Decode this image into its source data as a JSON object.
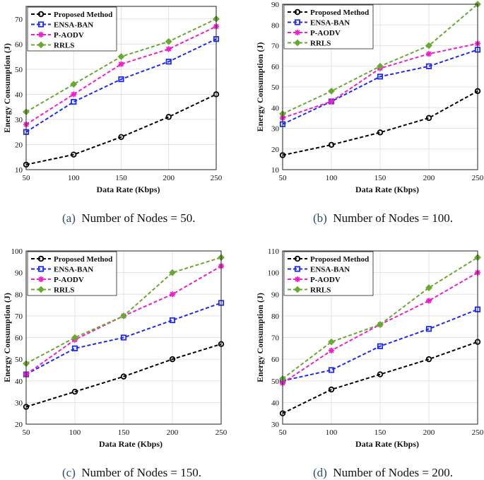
{
  "figure": {
    "captions": [
      {
        "label": "(a)",
        "text": "Number of Nodes = 50."
      },
      {
        "label": "(b)",
        "text": "Number of Nodes = 100."
      },
      {
        "label": "(c)",
        "text": "Number of Nodes = 150."
      },
      {
        "label": "(d)",
        "text": "Number of Nodes = 200."
      }
    ]
  },
  "colors": {
    "proposed": "#000000",
    "ensa": "#1f2bf0",
    "paodv": "#f020c8",
    "rrls": "#6aa832"
  },
  "chart_data": [
    {
      "type": "line",
      "title": "",
      "xlabel": "Data Rate (Kbps)",
      "ylabel": "Energy Consumption (J)",
      "x": [
        50,
        100,
        150,
        200,
        250
      ],
      "xlim": [
        50,
        250
      ],
      "ylim": [
        10,
        75
      ],
      "yticks": [
        10,
        20,
        30,
        40,
        50,
        60,
        70
      ],
      "grid": true,
      "legend_position": "top-left",
      "series": [
        {
          "name": "Proposed Method",
          "color_key": "proposed",
          "marker": "circle",
          "values": [
            12,
            16,
            23,
            31,
            40
          ]
        },
        {
          "name": "ENSA-BAN",
          "color_key": "ensa",
          "marker": "square",
          "values": [
            25,
            37,
            46,
            53,
            62
          ]
        },
        {
          "name": "P-AODV",
          "color_key": "paodv",
          "marker": "star",
          "values": [
            28,
            40,
            52,
            58,
            67
          ]
        },
        {
          "name": "RRLS",
          "color_key": "rrls",
          "marker": "diamond",
          "values": [
            33,
            44,
            55,
            61,
            70
          ]
        }
      ]
    },
    {
      "type": "line",
      "title": "",
      "xlabel": "Data Rate (Kbps)",
      "ylabel": "Energy Consumption (J)",
      "x": [
        50,
        100,
        150,
        200,
        250
      ],
      "xlim": [
        50,
        250
      ],
      "ylim": [
        10,
        90
      ],
      "yticks": [
        10,
        20,
        30,
        40,
        50,
        60,
        70,
        80,
        90
      ],
      "grid": true,
      "legend_position": "top-left",
      "series": [
        {
          "name": "Proposed Method",
          "color_key": "proposed",
          "marker": "circle",
          "values": [
            17,
            22,
            28,
            35,
            48
          ]
        },
        {
          "name": "ENSA-BAN",
          "color_key": "ensa",
          "marker": "square",
          "values": [
            32,
            43,
            55,
            60,
            68
          ]
        },
        {
          "name": "P-AODV",
          "color_key": "paodv",
          "marker": "star",
          "values": [
            35,
            43,
            59,
            66,
            71
          ]
        },
        {
          "name": "RRLS",
          "color_key": "rrls",
          "marker": "diamond",
          "values": [
            37,
            48,
            60,
            70,
            90
          ]
        }
      ]
    },
    {
      "type": "line",
      "title": "",
      "xlabel": "Data Rate (Kbps)",
      "ylabel": "Energy Consumption (J)",
      "x": [
        50,
        100,
        150,
        200,
        250
      ],
      "xlim": [
        50,
        250
      ],
      "ylim": [
        20,
        100
      ],
      "yticks": [
        20,
        30,
        40,
        50,
        60,
        70,
        80,
        90,
        100
      ],
      "grid": true,
      "legend_position": "top-left",
      "series": [
        {
          "name": "Proposed Method",
          "color_key": "proposed",
          "marker": "circle",
          "values": [
            28,
            35,
            42,
            50,
            57
          ]
        },
        {
          "name": "ENSA-BAN",
          "color_key": "ensa",
          "marker": "square",
          "values": [
            43,
            55,
            60,
            68,
            76
          ]
        },
        {
          "name": "P-AODV",
          "color_key": "paodv",
          "marker": "star",
          "values": [
            43,
            59,
            70,
            80,
            93
          ]
        },
        {
          "name": "RRLS",
          "color_key": "rrls",
          "marker": "diamond",
          "values": [
            48,
            60,
            70,
            90,
            97
          ]
        }
      ]
    },
    {
      "type": "line",
      "title": "",
      "xlabel": "Data Rate (Kbps)",
      "ylabel": "Energy Consumption (J)",
      "x": [
        50,
        100,
        150,
        200,
        250
      ],
      "xlim": [
        50,
        250
      ],
      "ylim": [
        30,
        110
      ],
      "yticks": [
        30,
        40,
        50,
        60,
        70,
        80,
        90,
        100,
        110
      ],
      "grid": true,
      "legend_position": "top-left",
      "series": [
        {
          "name": "Proposed Method",
          "color_key": "proposed",
          "marker": "circle",
          "values": [
            35,
            46,
            53,
            60,
            68
          ]
        },
        {
          "name": "ENSA-BAN",
          "color_key": "ensa",
          "marker": "square",
          "values": [
            50,
            55,
            66,
            74,
            83
          ]
        },
        {
          "name": "P-AODV",
          "color_key": "paodv",
          "marker": "star",
          "values": [
            49,
            64,
            76,
            87,
            100
          ]
        },
        {
          "name": "RRLS",
          "color_key": "rrls",
          "marker": "diamond",
          "values": [
            51,
            68,
            76,
            93,
            107
          ]
        }
      ]
    }
  ]
}
